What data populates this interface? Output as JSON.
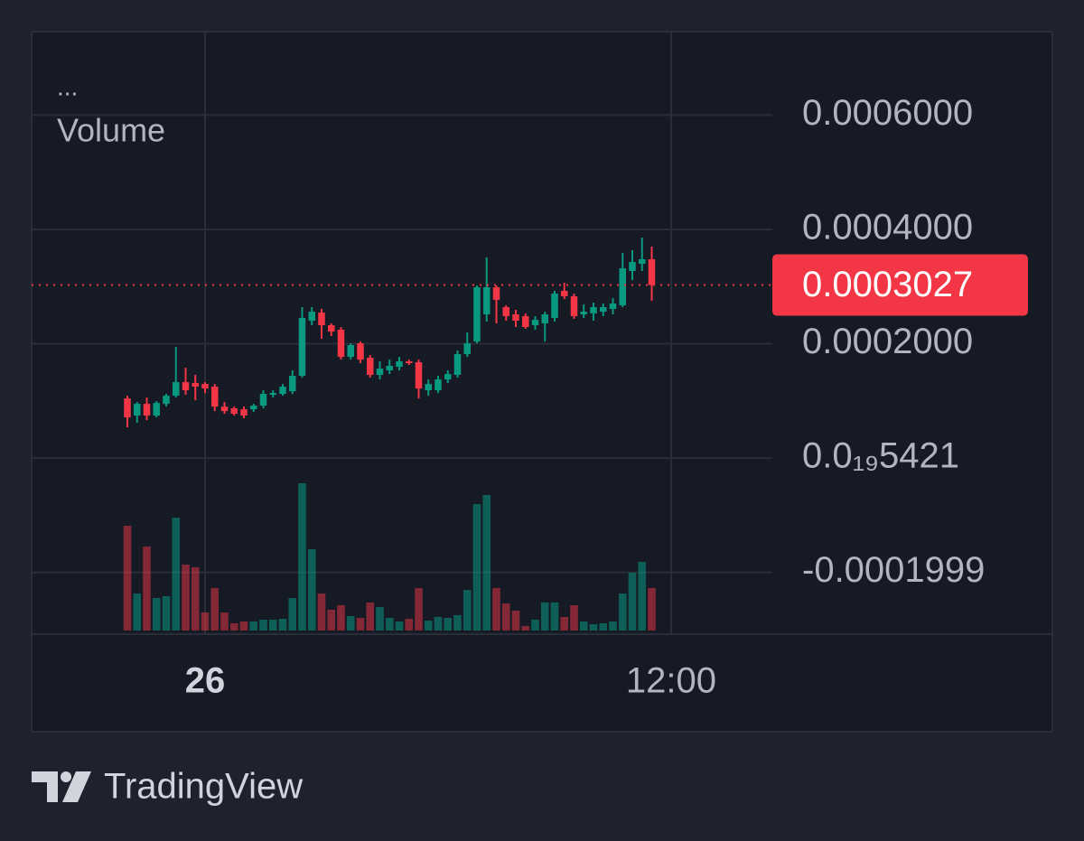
{
  "chart_data": {
    "type": "candlestick",
    "indicator_toggle": "...",
    "up_color": "#089981",
    "down_color": "#f23645",
    "open": [
      0.0001043,
      7.43e-05,
      9.49e-05,
      7.43e-05,
      9.49e-05,
      0.0001091,
      0.0001328,
      0.0001312,
      0.0001296,
      0.0001249,
      9.01e-05,
      8.7e-05,
      8.54e-05,
      8.54e-05,
      9.17e-05,
      0.0001107,
      0.0001123,
      0.000117,
      0.0001439,
      0.0002403,
      0.0002545,
      0.0002324,
      0.0002245,
      0.0001771,
      0.0002008,
      0.0001755,
      0.0001455,
      0.0001534,
      0.0001597,
      0.0001692,
      0.0001676,
      0.0001186,
      0.0001186,
      0.0001375,
      0.0001455,
      0.0001818,
      0.0002039,
      0.0002514,
      0.0002988,
      0.000264,
      0.0002514,
      0.0002482,
      0.0002324,
      0.0002356,
      0.0002451,
      0.0002925,
      0.000283,
      0.0002514,
      0.000253,
      0.0002561,
      0.0002609,
      0.0002672,
      0.0003273,
      0.0003399,
      0.0003478
    ],
    "high": [
      0.0001091,
      9.8e-05,
      0.0001059,
      9.96e-05,
      0.0001123,
      0.0001945,
      0.0001581,
      0.0001455,
      0.0001328,
      0.0001296,
      9.8e-05,
      9.01e-05,
      9.01e-05,
      9.49e-05,
      0.0001186,
      0.0001186,
      0.0001296,
      0.0001534,
      0.000264,
      0.000264,
      0.0002609,
      0.0002356,
      0.0002292,
      0.0002008,
      0.0002039,
      0.0001802,
      0.0001692,
      0.0001723,
      0.0001771,
      0.0001723,
      0.0001723,
      0.0001375,
      0.0001439,
      0.0001534,
      0.0001881,
      0.0002198,
      0.000302,
      0.000351,
      0.000302,
      0.0002672,
      0.0002593,
      0.000253,
      0.0002482,
      0.0002561,
      0.0002925,
      0.0003067,
      0.0002877,
      0.0002688,
      0.0002719,
      0.0002704,
      0.0002798,
      0.0003589,
      0.0003636,
      0.0003858,
      0.00037
    ],
    "low": [
      5.38e-05,
      6.17e-05,
      6.64e-05,
      7.11e-05,
      9.01e-05,
      0.0001059,
      0.0001107,
      0.0001012,
      0.0001138,
      8.22e-05,
      7.75e-05,
      7.43e-05,
      6.96e-05,
      8.06e-05,
      8.7e-05,
      0.0001059,
      0.0001091,
      0.0001123,
      0.0001407,
      0.0002324,
      0.0002087,
      0.0002134,
      0.0001723,
      0.0001723,
      0.000166,
      0.0001407,
      0.0001375,
      0.000147,
      0.0001534,
      0.0001628,
      0.0001043,
      0.0001091,
      0.0001138,
      0.0001312,
      0.0001407,
      0.0001771,
      0.0002008,
      0.0002387,
      0.0002356,
      0.0002403,
      0.0002292,
      0.0002261,
      0.0002245,
      0.0002039,
      0.0002387,
      0.0002783,
      0.0002435,
      0.0002451,
      0.0002403,
      0.0002482,
      0.0002514,
      0.000264,
      0.0003115,
      0.0003273,
      0.0002751
    ],
    "close": [
      7.11e-05,
      9.49e-05,
      7.43e-05,
      9.64e-05,
      0.0001091,
      0.0001328,
      0.0001186,
      0.0001249,
      0.0001217,
      9.01e-05,
      8.22e-05,
      7.75e-05,
      7.43e-05,
      9.17e-05,
      0.0001123,
      0.0001138,
      0.0001249,
      0.0001439,
      0.0002451,
      0.0002561,
      0.0002324,
      0.0002213,
      0.0001771,
      0.0001976,
      0.0001723,
      0.0001455,
      0.0001565,
      0.0001613,
      0.0001692,
      0.0001676,
      0.0001217,
      0.0001296,
      0.0001375,
      0.000147,
      0.0001818,
      0.0002008,
      0.0002988,
      0.0002988,
      0.0002767,
      0.0002482,
      0.0002403,
      0.0002292,
      0.0002419,
      0.0002514,
      0.0002877,
      0.000283,
      0.0002482,
      0.0002561,
      0.000264,
      0.000264,
      0.0002704,
      0.000332,
      0.0003431,
      0.0003478,
      0.0003027
    ],
    "volume": {
      "name": "Volume",
      "up_color": "rgba(8,153,129,0.55)",
      "down_color": "rgba(242,54,69,0.5)",
      "values": [
        116,
        41,
        93,
        36,
        38,
        125,
        73,
        70,
        20,
        47,
        20,
        8,
        10,
        10,
        12,
        12,
        13,
        36,
        163,
        90,
        41,
        23,
        28,
        16,
        14,
        31,
        26,
        14,
        10,
        13,
        47,
        11,
        15,
        14,
        17,
        45,
        140,
        150,
        47,
        30,
        22,
        5,
        12,
        31,
        31,
        15,
        28,
        10,
        7,
        8,
        10,
        41,
        64,
        76,
        47
      ]
    },
    "last_value_label": "0.0003027",
    "ylim": [
      -0.000308,
      0.000746
    ],
    "yticks": [
      {
        "value": -0.0001999,
        "label": "-0.0001999"
      },
      {
        "value": 5.421e-20,
        "label": "0.0₁₉5421"
      },
      {
        "value": 0.0002,
        "label": "0.0002000"
      },
      {
        "value": 0.0004,
        "label": "0.0004000"
      },
      {
        "value": 0.0006,
        "label": "0.0006000"
      }
    ],
    "xlim": [
      -9.86,
      66.42
    ],
    "xticks": [
      {
        "value": 8,
        "label": "26"
      },
      {
        "value": 56,
        "label": "12:00"
      }
    ],
    "grid": true
  },
  "branding": "TradingView"
}
